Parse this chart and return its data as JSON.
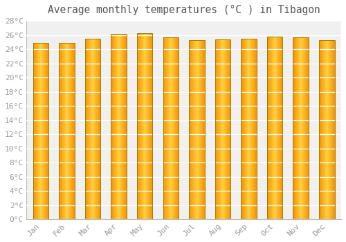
{
  "title": "Average monthly temperatures (°C ) in Tibagon",
  "months": [
    "Jan",
    "Feb",
    "Mar",
    "Apr",
    "May",
    "Jun",
    "Jul",
    "Aug",
    "Sep",
    "Oct",
    "Nov",
    "Dec"
  ],
  "values": [
    24.9,
    24.9,
    25.5,
    26.2,
    26.3,
    25.7,
    25.3,
    25.4,
    25.5,
    25.8,
    25.7,
    25.3
  ],
  "bar_color_center": "#FFD040",
  "bar_color_edge": "#F59000",
  "bar_border_color": "#B8860B",
  "background_color": "#FFFFFF",
  "plot_bg_color": "#F0F0F0",
  "grid_color": "#FFFFFF",
  "y_min": 0,
  "y_max": 28,
  "y_tick_step": 2,
  "tick_label_color": "#999999",
  "title_color": "#555555",
  "title_fontsize": 10.5,
  "tick_fontsize": 8,
  "bar_width": 0.6
}
